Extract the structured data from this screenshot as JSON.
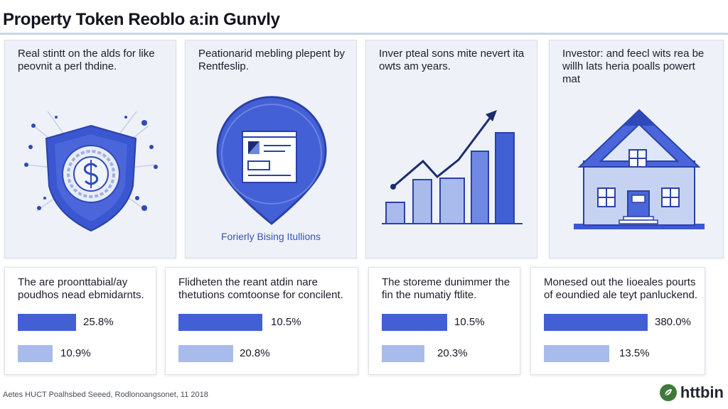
{
  "header": {
    "title": "Property Token Reoblo a:in Gunvly"
  },
  "top_panels": [
    {
      "description": "Real stintt on the alds for like peovnit a perl thdine.",
      "icon": "shield-coin-icon",
      "caption": ""
    },
    {
      "description": "Peationarid mebling plepent by Rentfeslip.",
      "icon": "browser-window-pin-icon",
      "caption": "Forierly Bising Itullions"
    },
    {
      "description": "Inver pteal sons mite nevert ita owts am years.",
      "icon": "bar-chart-trend-icon",
      "caption": ""
    },
    {
      "description": "Investor: and feecl wits rea be willh lats heria poalls powert mat",
      "icon": "house-icon",
      "caption": ""
    }
  ],
  "bottom_cards": [
    {
      "description": "The are proonttabial/ay poudhos nead ebmidarnts.",
      "bars": [
        {
          "label": "25.8%",
          "fill": 1.0
        },
        {
          "label": "10.9%",
          "fill": 0.6
        }
      ]
    },
    {
      "description": "Flidheten the reant atdin nare thetutions comtoonse for concilent.",
      "bars": [
        {
          "label": "10.5%",
          "fill": 1.0
        },
        {
          "label": "20.8%",
          "fill": 0.65
        }
      ]
    },
    {
      "description": "The storeme dunimmer the fin the numatiy ftlite.",
      "bars": [
        {
          "label": "10.5%",
          "fill": 1.0
        },
        {
          "label": "20.3%",
          "fill": 0.65
        }
      ]
    },
    {
      "description": "Monesed out the Iioeales pourts of eoundied ale teyt panluckend.",
      "bars": [
        {
          "label": "380.0%",
          "fill": 1.0
        },
        {
          "label": "13.5%",
          "fill": 0.63
        }
      ]
    }
  ],
  "footer": {
    "note": "Aetes HUCT Poalhsbed Seeed, Rodlonoangsonet, 11 2018",
    "brand": "httbin",
    "brand_icon": "leaf-logo-icon"
  },
  "colors": {
    "accent": "#4060d4",
    "accent_light": "#a9bbec",
    "panel_bg": "#eef1f8"
  }
}
